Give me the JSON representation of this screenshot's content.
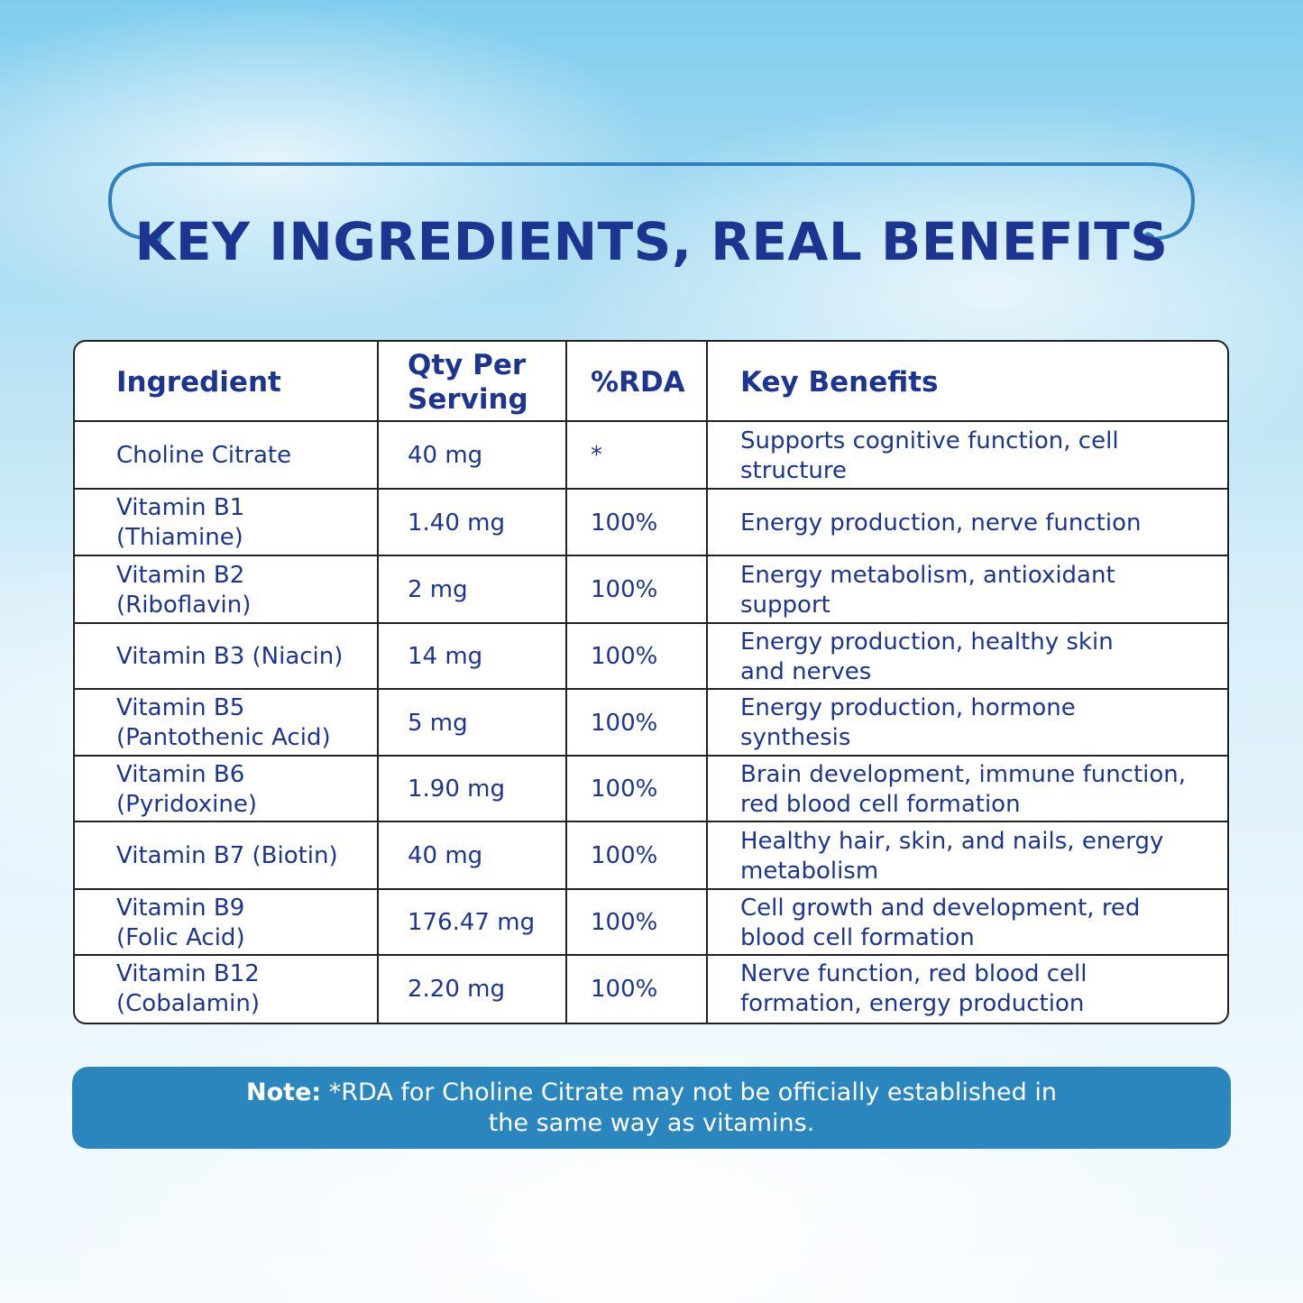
{
  "title": "KEY INGREDIENTS, REAL BENEFITS",
  "colors": {
    "heading": "#1c3591",
    "arc": "#2f7fc1",
    "note_bg": "#2a86bd"
  },
  "table": {
    "headers": {
      "ingredient": "Ingredient",
      "qty_line1": "Qty Per",
      "qty_line2": "Serving",
      "rda": "%RDA",
      "benefits": "Key Benefits"
    },
    "rows": [
      {
        "ingredient": [
          "Choline Citrate"
        ],
        "qty": "40 mg",
        "rda": "*",
        "benefits": [
          "Supports cognitive function, cell",
          "structure"
        ]
      },
      {
        "ingredient": [
          "Vitamin B1",
          "(Thiamine)"
        ],
        "qty": "1.40 mg",
        "rda": "100%",
        "benefits": [
          "Energy production, nerve function"
        ]
      },
      {
        "ingredient": [
          "Vitamin B2",
          "(Riboflavin)"
        ],
        "qty": "2 mg",
        "rda": "100%",
        "benefits": [
          "Energy metabolism, antioxidant",
          "support"
        ]
      },
      {
        "ingredient": [
          "Vitamin B3 (Niacin)"
        ],
        "qty": "14 mg",
        "rda": "100%",
        "benefits": [
          "Energy production, healthy skin",
          "and nerves"
        ]
      },
      {
        "ingredient": [
          "Vitamin B5",
          "(Pantothenic Acid)"
        ],
        "qty": "5 mg",
        "rda": "100%",
        "benefits": [
          "Energy production, hormone",
          "synthesis"
        ]
      },
      {
        "ingredient": [
          "Vitamin B6",
          "(Pyridoxine)"
        ],
        "qty": "1.90 mg",
        "rda": "100%",
        "benefits": [
          "Brain development, immune function,",
          "red blood cell formation"
        ]
      },
      {
        "ingredient": [
          "Vitamin B7 (Biotin)"
        ],
        "qty": "40 mg",
        "rda": "100%",
        "benefits": [
          "Healthy hair, skin, and nails, energy",
          "metabolism"
        ]
      },
      {
        "ingredient": [
          "Vitamin B9",
          "(Folic Acid)"
        ],
        "qty": "176.47 mg",
        "rda": "100%",
        "benefits": [
          "Cell growth and development, red",
          "blood cell formation"
        ]
      },
      {
        "ingredient": [
          "Vitamin B12",
          "(Cobalamin)"
        ],
        "qty": "2.20 mg",
        "rda": "100%",
        "benefits": [
          "Nerve function, red blood cell",
          "formation, energy production"
        ]
      }
    ]
  },
  "note": {
    "label": "Note:",
    "line1": " *RDA for Choline Citrate may not be officially established in",
    "line2": "the same way as vitamins."
  }
}
